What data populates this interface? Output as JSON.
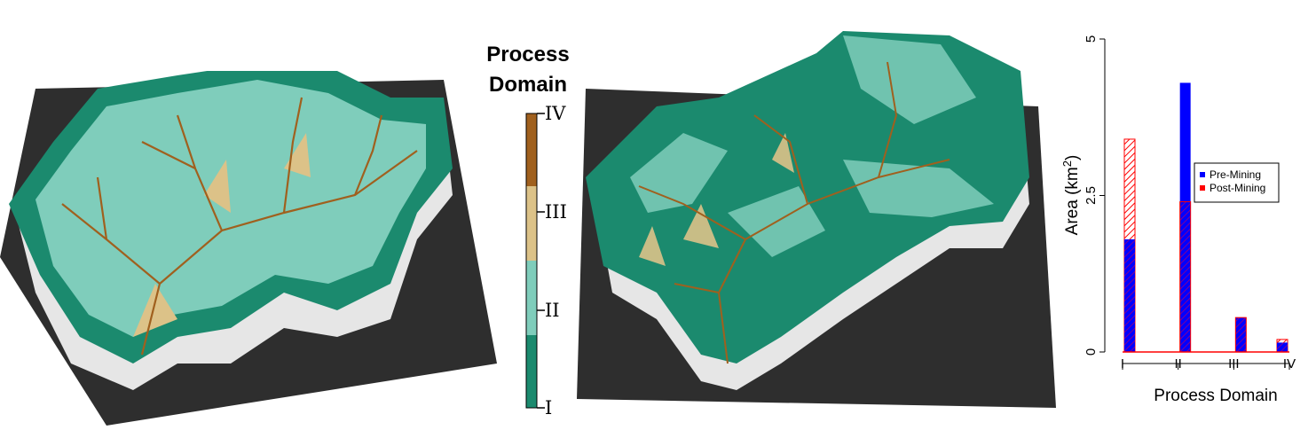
{
  "legend": {
    "title_line1": "Process",
    "title_line2": "Domain",
    "classes": [
      {
        "label": "IV",
        "color": "#a0601e"
      },
      {
        "label": "III",
        "color": "#dcc288"
      },
      {
        "label": "II",
        "color": "#7fcdbb"
      },
      {
        "label": "I",
        "color": "#1b8a6e"
      }
    ]
  },
  "colors": {
    "terrain_base": "#2e2e2e",
    "cliff": "#e6e6e6",
    "pre_mining": "#0000ff",
    "post_mining": "#ff0000"
  },
  "chart_data": {
    "type": "bar",
    "xlabel": "Process Domain",
    "ylabel": "Area (km²)",
    "ylabel_main": "Area (km",
    "ylabel_sup": "2",
    "ylabel_close": ")",
    "categories": [
      "I",
      "II",
      "III",
      "IV"
    ],
    "ylim": [
      0,
      5
    ],
    "yticks": [
      0,
      2.5,
      5
    ],
    "series": [
      {
        "name": "Pre-Mining",
        "values": [
          1.8,
          4.3,
          0.55,
          0.15
        ]
      },
      {
        "name": "Post-Mining",
        "values": [
          3.4,
          2.4,
          0.55,
          0.2
        ]
      }
    ],
    "legend_position": "right",
    "grid": false
  }
}
